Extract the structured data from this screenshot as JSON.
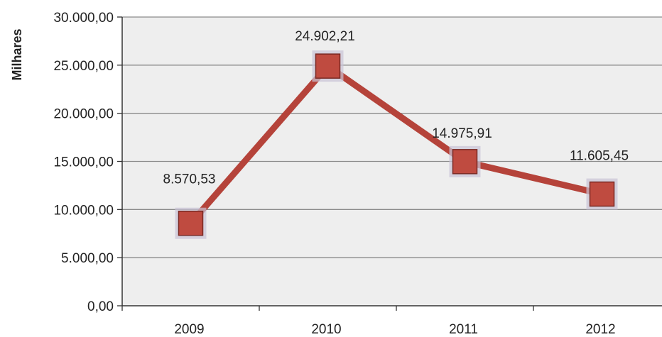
{
  "chart_data": {
    "type": "line",
    "title": "",
    "xlabel": "",
    "ylabel": "Milhares",
    "categories": [
      "2009",
      "2010",
      "2011",
      "2012"
    ],
    "series": [
      {
        "values": [
          8570.53,
          24902.21,
          14975.91,
          11605.45
        ],
        "data_labels": [
          "8.570,53",
          "24.902,21",
          "14.975,91",
          "11.605,45"
        ],
        "color": "#b5433a"
      }
    ],
    "ylim": [
      0,
      30000
    ],
    "yticks": [
      0,
      5000,
      10000,
      15000,
      20000,
      25000,
      30000
    ],
    "ytick_labels": [
      "0,00",
      "5.000,00",
      "10.000,00",
      "15.000,00",
      "20.000,00",
      "25.000,00",
      "30.000,00"
    ],
    "grid": true,
    "legend": "none",
    "plot_background": "#eeeeee",
    "gridline_color": "#8a8a8a"
  }
}
